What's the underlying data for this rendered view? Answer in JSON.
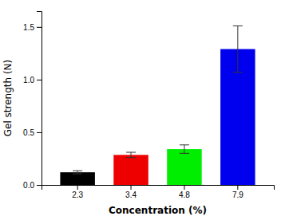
{
  "chart_data": {
    "type": "bar",
    "xlabel": "Concentration (%)",
    "ylabel": "Gel strength (N)",
    "categories": [
      "2.3",
      "3.4",
      "4.8",
      "7.9"
    ],
    "values": [
      0.12,
      0.285,
      0.34,
      1.29
    ],
    "errors": [
      0.015,
      0.025,
      0.04,
      0.22
    ],
    "colors": [
      "#000000",
      "#ee0000",
      "#00ee00",
      "#0000ee"
    ],
    "ylim": [
      0,
      1.65
    ],
    "yticks": [
      {
        "value": 0,
        "label": "0.0"
      },
      0.5,
      {
        "value": 1,
        "label": "1.0"
      },
      1.5
    ],
    "grid": false
  }
}
